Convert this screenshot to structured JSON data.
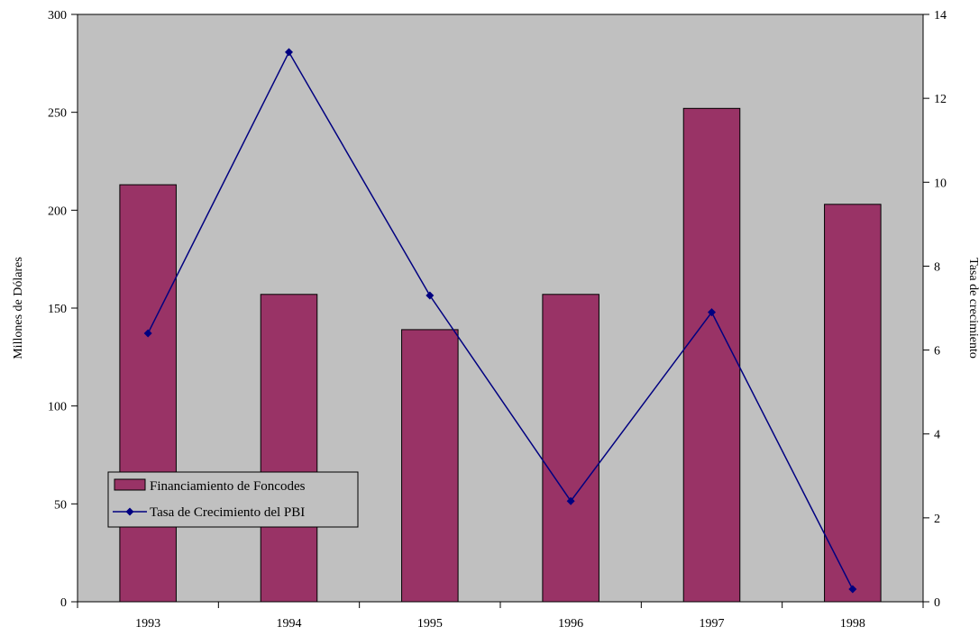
{
  "chart_data": {
    "type": "bar",
    "categories": [
      "1993",
      "1994",
      "1995",
      "1996",
      "1997",
      "1998"
    ],
    "series": [
      {
        "name": "Financiamiento de Foncodes",
        "type": "bar",
        "axis": "left",
        "values": [
          213,
          157,
          139,
          157,
          252,
          203
        ]
      },
      {
        "name": "Tasa de Crecimiento del PBI",
        "type": "line",
        "axis": "right",
        "values": [
          6.4,
          13.1,
          7.3,
          2.4,
          6.9,
          0.3
        ]
      }
    ],
    "ylabel": "Millones de Dólares",
    "y2label": "Tasa de crecimiento",
    "ylim": [
      0,
      300
    ],
    "y2lim": [
      0,
      14
    ],
    "yticks": [
      "0",
      "50",
      "100",
      "150",
      "200",
      "250",
      "300"
    ],
    "y2ticks": [
      "0",
      "2",
      "4",
      "6",
      "8",
      "10",
      "12",
      "14"
    ],
    "grid": false,
    "legend_position": "left",
    "colors": {
      "plot_background": "#c0c0c0",
      "bar_fill": "#993366",
      "line": "#000080"
    }
  }
}
